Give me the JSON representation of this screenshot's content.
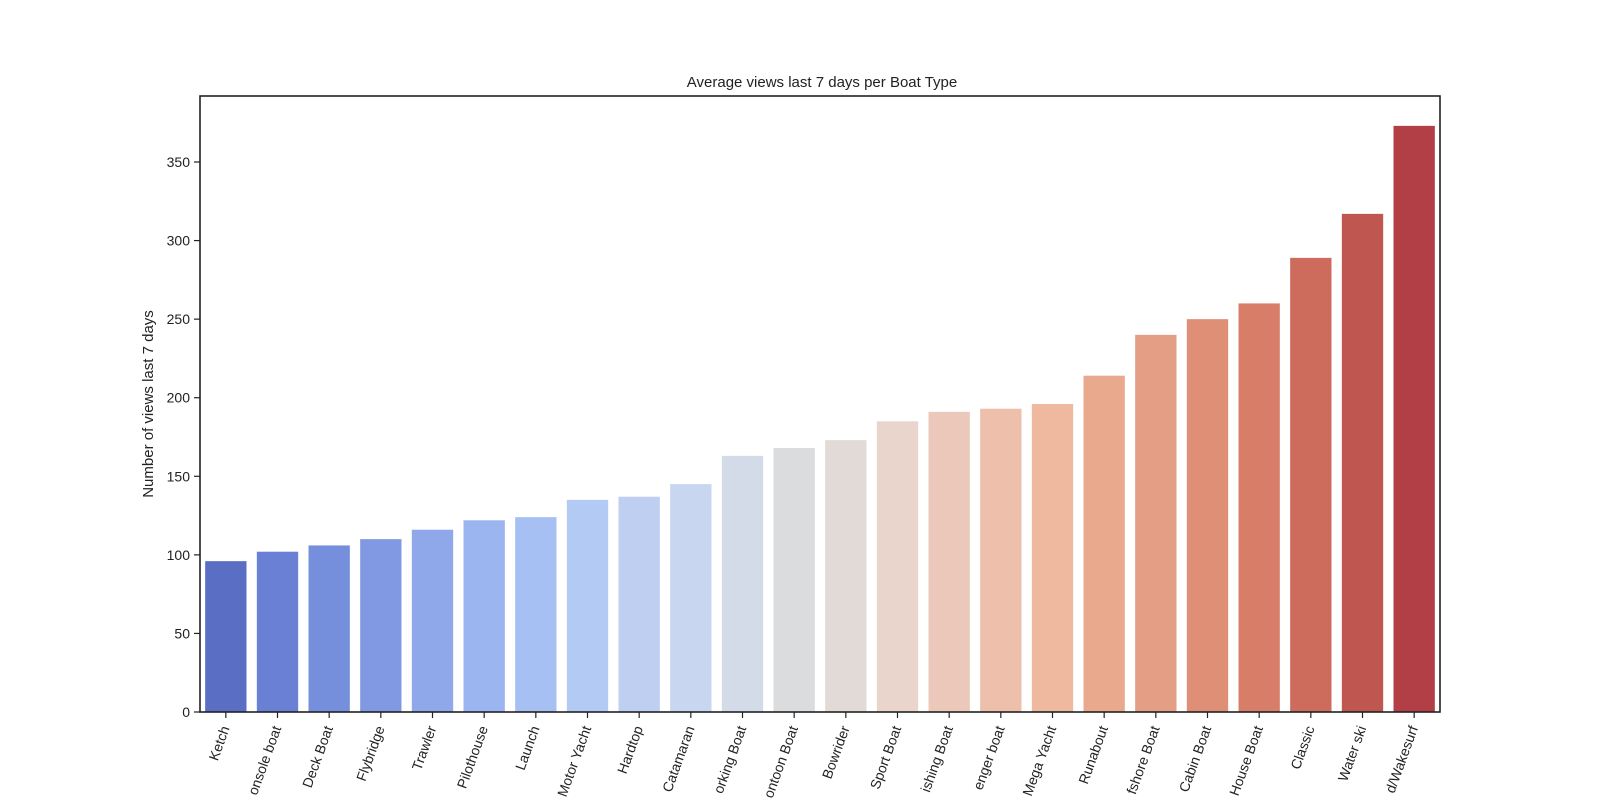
{
  "chart_data": {
    "type": "bar",
    "title": "Average views last 7 days per Boat Type",
    "xlabel": "",
    "ylabel": "Number of views last 7 days",
    "ylim": [
      0,
      392
    ],
    "yticks": [
      0,
      50,
      100,
      150,
      200,
      250,
      300,
      350
    ],
    "grid": false,
    "categories": [
      "Ketch",
      "onsole boat",
      "Deck Boat",
      "Flybridge",
      "Trawler",
      "Pilothouse",
      "Launch",
      "Motor Yacht",
      "Hardtop",
      "Catamaran",
      "orking Boat",
      "ontoon Boat",
      "Bowrider",
      "Sport Boat",
      "ishing Boat",
      "enger boat",
      "Mega Yacht",
      "Runabout",
      "fshore Boat",
      "Cabin Boat",
      "House Boat",
      "Classic",
      "Water ski",
      "d/Wakesurf"
    ],
    "values": [
      96,
      102,
      106,
      110,
      116,
      122,
      124,
      135,
      137,
      145,
      163,
      168,
      173,
      185,
      191,
      193,
      196,
      214,
      240,
      250,
      260,
      289,
      317,
      373
    ],
    "colors": [
      "#5a6fc4",
      "#6a80d4",
      "#758fdc",
      "#8199e3",
      "#8ea8ea",
      "#9bb5f0",
      "#a6c0f4",
      "#b3cbf4",
      "#becff2",
      "#c9d6ef",
      "#d3dbe8",
      "#dadcde",
      "#e2dad7",
      "#e9d5cc",
      "#ecc8ba",
      "#eec0ab",
      "#eeb99e",
      "#e9a98d",
      "#e49e85",
      "#de8f76",
      "#d87d68",
      "#cd6b5c",
      "#c05650",
      "#b23f46"
    ]
  }
}
